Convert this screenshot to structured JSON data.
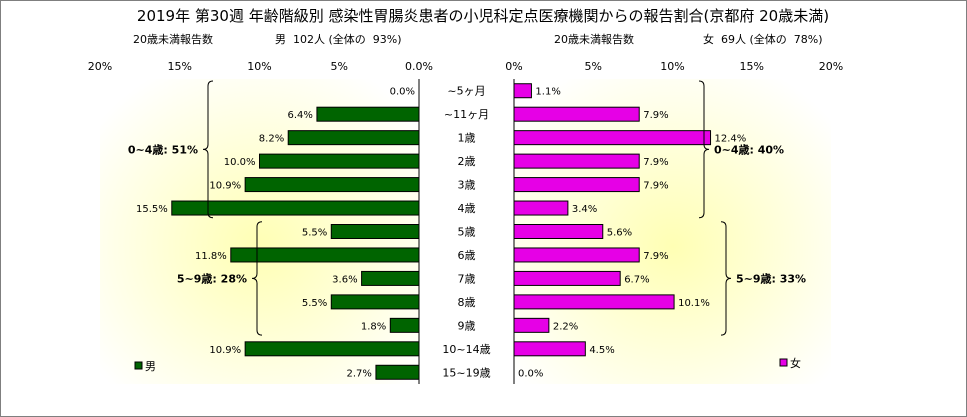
{
  "title": "2019年 第30週 年齢階級別 感染性胃腸炎患者の小児科定点医療機関からの報告割合(京都府 20歳未満)",
  "colors": {
    "male": "#006400",
    "female": "#e600e6",
    "plot_top": "#ffffff",
    "plot_center": "#ffffb4",
    "border": "#000000"
  },
  "age_groups": [
    "~5ヶ月",
    "~11ヶ月",
    "1歳",
    "2歳",
    "3歳",
    "4歳",
    "5歳",
    "6歳",
    "7歳",
    "8歳",
    "9歳",
    "10~14歳",
    "15~19歳"
  ],
  "chart_data": [
    {
      "type": "bar",
      "orientation": "horizontal-reversed",
      "header_left": "20歳未満報告数",
      "header_right": "男  102人 (全体の  93%)",
      "categories": [
        "~5ヶ月",
        "~11ヶ月",
        "1歳",
        "2歳",
        "3歳",
        "4歳",
        "5歳",
        "6歳",
        "7歳",
        "8歳",
        "9歳",
        "10~14歳",
        "15~19歳"
      ],
      "series": [
        {
          "name": "男",
          "values": [
            0.0,
            6.4,
            8.2,
            10.0,
            10.9,
            15.5,
            5.5,
            11.8,
            3.6,
            5.5,
            1.8,
            10.9,
            2.7
          ]
        }
      ],
      "value_labels": [
        "0.0%",
        "6.4%",
        "8.2%",
        "10.0%",
        "10.9%",
        "15.5%",
        "5.5%",
        "11.8%",
        "3.6%",
        "5.5%",
        "1.8%",
        "10.9%",
        "2.7%"
      ],
      "xlim": [
        0,
        20
      ],
      "ticks": [
        "20%",
        "15%",
        "10%",
        "5%",
        "0.0%"
      ],
      "tick_values": [
        20,
        15,
        10,
        5,
        0
      ],
      "legend": "男",
      "legend_position": "bottom-left",
      "brackets": [
        {
          "label": "0~4歳: 51%",
          "from": 0,
          "to": 5
        },
        {
          "label": "5~9歳: 28%",
          "from": 6,
          "to": 10
        }
      ]
    },
    {
      "type": "bar",
      "orientation": "horizontal",
      "header_left": "20歳未満報告数",
      "header_right": "女  69人 (全体の  78%)",
      "categories": [
        "~5ヶ月",
        "~11ヶ月",
        "1歳",
        "2歳",
        "3歳",
        "4歳",
        "5歳",
        "6歳",
        "7歳",
        "8歳",
        "9歳",
        "10~14歳",
        "15~19歳"
      ],
      "series": [
        {
          "name": "女",
          "values": [
            1.1,
            7.9,
            12.4,
            7.9,
            7.9,
            3.4,
            5.6,
            7.9,
            6.7,
            10.1,
            2.2,
            4.5,
            0.0
          ]
        }
      ],
      "value_labels": [
        "1.1%",
        "7.9%",
        "12.4%",
        "7.9%",
        "7.9%",
        "3.4%",
        "5.6%",
        "7.9%",
        "6.7%",
        "10.1%",
        "2.2%",
        "4.5%",
        "0.0%"
      ],
      "xlim": [
        0,
        20
      ],
      "ticks": [
        "0%",
        "5%",
        "10%",
        "15%",
        "20%"
      ],
      "tick_values": [
        0,
        5,
        10,
        15,
        20
      ],
      "legend": "女",
      "legend_position": "bottom-right",
      "brackets": [
        {
          "label": "0~4歳: 40%",
          "from": 0,
          "to": 5
        },
        {
          "label": "5~9歳: 33%",
          "from": 6,
          "to": 10
        }
      ]
    }
  ]
}
